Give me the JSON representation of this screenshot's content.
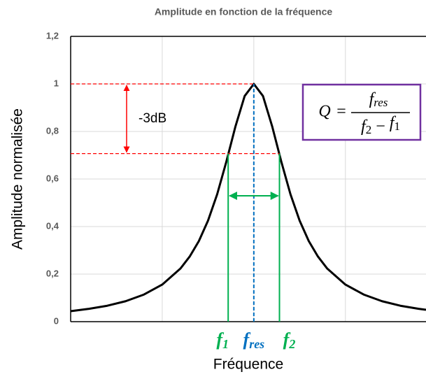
{
  "chart_data": {
    "type": "line",
    "title": "Amplitude en fonction de la fréquence",
    "xlabel": "Fréquence",
    "ylabel": "Amplitude normalisée",
    "x": [
      0,
      0.2,
      0.4,
      0.6,
      0.8,
      1.0,
      1.2,
      1.3,
      1.4,
      1.5,
      1.6,
      1.7,
      1.8,
      1.9,
      2.0,
      2.1,
      2.2,
      2.3,
      2.4,
      2.5,
      2.6,
      2.7,
      2.8,
      3.0,
      3.2,
      3.4,
      3.6,
      3.8,
      3.88
    ],
    "series": [
      {
        "color": "#000000",
        "values": [
          0.044,
          0.054,
          0.067,
          0.086,
          0.114,
          0.156,
          0.224,
          0.274,
          0.339,
          0.425,
          0.536,
          0.673,
          0.822,
          0.949,
          1.0,
          0.949,
          0.822,
          0.673,
          0.536,
          0.425,
          0.339,
          0.274,
          0.224,
          0.156,
          0.114,
          0.086,
          0.067,
          0.054,
          0.05
        ]
      }
    ],
    "xlim": [
      0,
      3.88
    ],
    "xticks": [
      1,
      2,
      3
    ],
    "ylim": [
      0,
      1.2
    ],
    "yticks": [
      0,
      {
        "value": 0.2,
        "label": "0,2"
      },
      {
        "value": 0.4,
        "label": "0,4"
      },
      {
        "value": 0.6,
        "label": "0,6"
      },
      {
        "value": 0.8,
        "label": "0,8"
      },
      1,
      {
        "value": 1.2,
        "label": "1,2"
      }
    ],
    "grid": true,
    "level_annotation": {
      "text": "-3dB",
      "top": 1,
      "bottom": 0.707,
      "color": "#ff0000"
    },
    "markers": [
      {
        "x": 1.72,
        "symbol": "f",
        "sub": "1",
        "color": "#00b050",
        "top": 0.707
      },
      {
        "x": 2.0,
        "symbol": "f",
        "sub": "res",
        "color": "#0070c0",
        "top": 1
      },
      {
        "x": 2.28,
        "symbol": "f",
        "sub": "2",
        "color": "#00b050",
        "top": 0.707
      }
    ],
    "formula": {
      "lhs": "Q",
      "equals": "=",
      "numerator": {
        "symbol": "f",
        "sub": "res"
      },
      "denominator": [
        {
          "symbol": "f",
          "sub": "2"
        },
        "−",
        {
          "symbol": "f",
          "sub": "1"
        }
      ],
      "border_color": "#7030a0"
    }
  }
}
